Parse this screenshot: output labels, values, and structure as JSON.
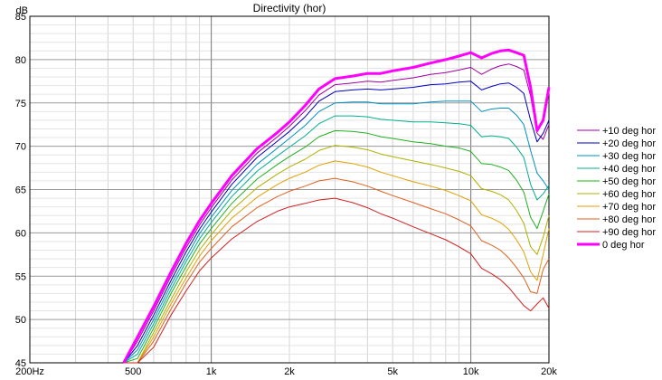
{
  "chart_data": {
    "type": "line",
    "title": "Directivity (hor)",
    "ylabel": "dB",
    "xlabel": "",
    "x_scale": "log",
    "xlim": [
      200,
      20000
    ],
    "ylim": [
      45,
      85
    ],
    "grid": true,
    "legend_position": "right",
    "x_ticks": [
      {
        "value": 200,
        "label": "200Hz"
      },
      {
        "value": 500,
        "label": "500"
      },
      {
        "value": 1000,
        "label": "1k"
      },
      {
        "value": 2000,
        "label": "2k"
      },
      {
        "value": 5000,
        "label": "5k"
      },
      {
        "value": 10000,
        "label": "10k"
      },
      {
        "value": 20000,
        "label": "20k"
      }
    ],
    "y_ticks": [
      45,
      50,
      55,
      60,
      65,
      70,
      75,
      80,
      85
    ],
    "x": [
      460,
      520,
      600,
      700,
      800,
      900,
      1000,
      1200,
      1500,
      1800,
      2000,
      2300,
      2600,
      3000,
      3500,
      4000,
      4500,
      5000,
      6000,
      7000,
      8000,
      9000,
      10000,
      11000,
      12000,
      13000,
      14000,
      15000,
      16000,
      17000,
      18000,
      19000,
      20000
    ],
    "series": [
      {
        "name": "+10 deg hor",
        "color": "#a000a0",
        "width": 1,
        "values": [
          45,
          47.5,
          51,
          55,
          58.3,
          60.9,
          62.9,
          66.1,
          69.2,
          71.1,
          72.3,
          74.1,
          75.9,
          77.1,
          77.3,
          77.5,
          77.4,
          77.6,
          77.9,
          78.3,
          78.5,
          78.8,
          79.1,
          78.3,
          78.9,
          79.3,
          79.5,
          79.2,
          78.8,
          75.8,
          71.5,
          70.8,
          72.5
        ]
      },
      {
        "name": "+20 deg hor",
        "color": "#0000c0",
        "width": 1,
        "values": [
          45,
          47,
          50.5,
          54.5,
          57.8,
          60.4,
          62.4,
          65.6,
          68.7,
          70.6,
          71.7,
          73.4,
          75.2,
          76.3,
          76.5,
          76.6,
          76.5,
          76.6,
          76.8,
          77.1,
          77.2,
          77.4,
          77.5,
          76.5,
          76.9,
          77.2,
          77.3,
          76.8,
          76.1,
          73,
          70.5,
          71.5,
          73
        ]
      },
      {
        "name": "+30 deg hor",
        "color": "#0090c0",
        "width": 1,
        "values": [
          45,
          46.5,
          50,
          54,
          57.2,
          59.9,
          61.8,
          64.9,
          67.9,
          69.8,
          70.9,
          72.4,
          74,
          75,
          75.1,
          75.1,
          74.9,
          74.9,
          74.9,
          75.1,
          75.2,
          75.2,
          75.2,
          74,
          74.3,
          74.4,
          74.4,
          73.6,
          72.5,
          69.5,
          66.9,
          66,
          65
        ]
      },
      {
        "name": "+40 deg hor",
        "color": "#00b090",
        "width": 1,
        "values": [
          45,
          46,
          49.5,
          53.5,
          56.7,
          59.3,
          61.2,
          64.2,
          67.1,
          68.9,
          69.9,
          71.2,
          72.6,
          73.5,
          73.5,
          73.4,
          73.1,
          73,
          72.8,
          72.8,
          72.7,
          72.6,
          72.4,
          71.1,
          71.2,
          71.1,
          70.9,
          69.9,
          68.7,
          65.6,
          63.8,
          64.5,
          65.5
        ]
      },
      {
        "name": "+50 deg hor",
        "color": "#20b020",
        "width": 1,
        "values": [
          45,
          45.5,
          49,
          53,
          56.1,
          58.7,
          60.5,
          63.4,
          66.2,
          67.9,
          68.8,
          69.9,
          71.1,
          71.8,
          71.7,
          71.5,
          71.1,
          70.9,
          70.5,
          70.3,
          70,
          69.8,
          69.4,
          68,
          67.9,
          67.6,
          67.2,
          66.1,
          64.7,
          61.8,
          60.5,
          62.5,
          64.5
        ]
      },
      {
        "name": "+60 deg hor",
        "color": "#b0b000",
        "width": 1,
        "values": [
          44.8,
          45,
          48.5,
          52.3,
          55.5,
          58,
          59.8,
          62.6,
          65.2,
          66.8,
          67.6,
          68.5,
          69.5,
          70.1,
          69.9,
          69.6,
          69.1,
          68.8,
          68.3,
          67.9,
          67.5,
          67.1,
          66.6,
          65.1,
          64.8,
          64.4,
          63.8,
          62.6,
          61.1,
          58.4,
          57.5,
          59.5,
          62
        ]
      },
      {
        "name": "+70 deg hor",
        "color": "#e0a000",
        "width": 1,
        "values": [
          44.6,
          44.8,
          48,
          51.8,
          54.8,
          57.3,
          59.1,
          61.7,
          64.1,
          65.6,
          66.3,
          67,
          67.8,
          68.3,
          68,
          67.6,
          67,
          66.6,
          65.9,
          65.4,
          64.9,
          64.3,
          63.7,
          62.1,
          61.7,
          61.2,
          60.4,
          59.2,
          57.8,
          55.5,
          54.5,
          57.5,
          60.5
        ]
      },
      {
        "name": "+80 deg hor",
        "color": "#e06020",
        "width": 1,
        "values": [
          44.4,
          44.6,
          47.5,
          51.2,
          54.2,
          56.6,
          58.2,
          60.7,
          62.9,
          64.2,
          64.8,
          65.4,
          66,
          66.3,
          65.9,
          65.4,
          64.8,
          64.3,
          63.5,
          62.8,
          62.2,
          61.5,
          60.8,
          59.1,
          58.6,
          58,
          57.1,
          56,
          54.8,
          53.2,
          53,
          55.8,
          57
        ]
      },
      {
        "name": "+90 deg hor",
        "color": "#d02020",
        "width": 1,
        "values": [
          44.2,
          44.4,
          46.8,
          50.5,
          53.3,
          55.6,
          57.1,
          59.3,
          61.3,
          62.5,
          63,
          63.4,
          63.8,
          64,
          63.5,
          62.9,
          62.2,
          61.7,
          60.7,
          59.9,
          59.2,
          58.4,
          57.6,
          55.9,
          55.3,
          54.6,
          53.7,
          52.6,
          51.6,
          51,
          51.8,
          52.5,
          51.3
        ]
      },
      {
        "name": "0 deg hor",
        "color": "#ff00ff",
        "width": 3,
        "values": [
          45,
          48,
          51.5,
          55.5,
          58.8,
          61.4,
          63.4,
          66.6,
          69.7,
          71.6,
          72.8,
          74.7,
          76.6,
          77.8,
          78.1,
          78.4,
          78.4,
          78.7,
          79.1,
          79.6,
          80,
          80.4,
          80.8,
          80.2,
          80.7,
          81,
          81.1,
          80.8,
          80.5,
          76.8,
          71.8,
          73,
          76.8
        ]
      }
    ]
  }
}
